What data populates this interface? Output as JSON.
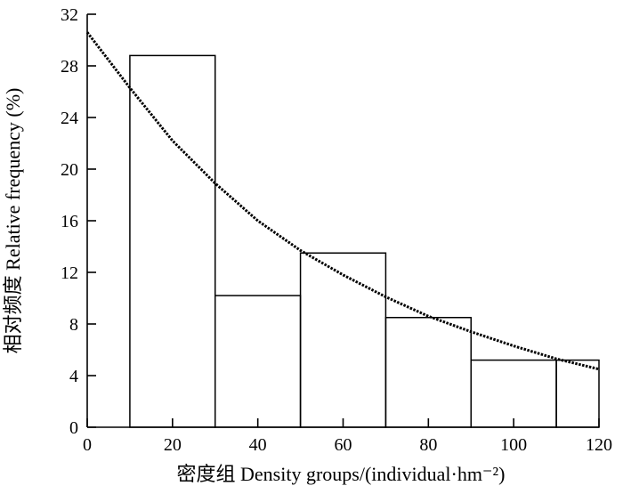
{
  "chart_data": {
    "type": "bar",
    "title": "",
    "xlabel": "密度组 Density groups/(individual·hm⁻²)",
    "ylabel": "相对频度 Relative frequency (%)",
    "xlim": [
      0,
      120
    ],
    "ylim": [
      0,
      32
    ],
    "x_ticks": [
      0,
      20,
      40,
      60,
      80,
      100,
      120
    ],
    "y_ticks": [
      0,
      4,
      8,
      12,
      16,
      20,
      24,
      28,
      32
    ],
    "bins": [
      {
        "x0": 10,
        "x1": 30,
        "value": 28.8
      },
      {
        "x0": 30,
        "x1": 50,
        "value": 10.2
      },
      {
        "x0": 50,
        "x1": 70,
        "value": 13.5
      },
      {
        "x0": 70,
        "x1": 90,
        "value": 8.5
      },
      {
        "x0": 90,
        "x1": 110,
        "value": 5.2
      },
      {
        "x0": 110,
        "x1": 120,
        "value": 5.2
      }
    ],
    "fit_curve": {
      "style": "dotted",
      "x": [
        0,
        10,
        20,
        30,
        40,
        50,
        60,
        70,
        80,
        90,
        100,
        110,
        120
      ],
      "y": [
        30.6,
        26.3,
        22.2,
        18.9,
        16.0,
        13.7,
        11.8,
        10.1,
        8.6,
        7.4,
        6.3,
        5.3,
        4.5
      ]
    },
    "grid": false,
    "legend": "none"
  }
}
